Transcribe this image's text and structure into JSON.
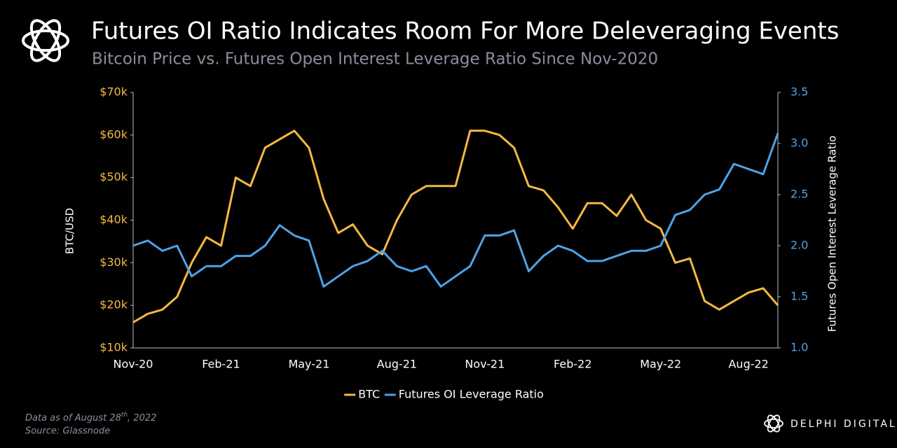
{
  "chart_data": {
    "type": "line",
    "title": "Futures OI Ratio Indicates Room For More Deleveraging Events",
    "subtitle": "Bitcoin Price vs. Futures Open Interest Leverage Ratio Since Nov-2020",
    "y_label": "BTC/USD",
    "y2_label": "Futures Open Interest Leverage Ratio",
    "categories": [
      "Nov-20",
      null,
      null,
      null,
      null,
      null,
      "Feb-21",
      null,
      null,
      null,
      null,
      null,
      "May-21",
      null,
      null,
      null,
      null,
      null,
      "Aug-21",
      null,
      null,
      null,
      null,
      null,
      "Nov-21",
      null,
      null,
      null,
      null,
      null,
      "Feb-22",
      null,
      null,
      null,
      null,
      null,
      "May-22",
      null,
      null,
      null,
      null,
      null,
      "Aug-22",
      null,
      null
    ],
    "series": [
      {
        "name": "BTC",
        "color": "#f4b942",
        "axis": "y",
        "values": [
          16000,
          18000,
          19000,
          22000,
          30000,
          36000,
          34000,
          50000,
          48000,
          57000,
          59000,
          61000,
          57000,
          45000,
          37000,
          39000,
          34000,
          32000,
          40000,
          46000,
          48000,
          48000,
          48000,
          61000,
          61000,
          60000,
          57000,
          48000,
          47000,
          43000,
          38000,
          44000,
          44000,
          41000,
          46000,
          40000,
          38000,
          30000,
          31000,
          21000,
          19000,
          21000,
          23000,
          24000,
          20000
        ]
      },
      {
        "name": "Futures OI Leverage Ratio",
        "color": "#4da3e8",
        "axis": "y2",
        "values": [
          2.0,
          2.05,
          1.95,
          2.0,
          1.7,
          1.8,
          1.8,
          1.9,
          1.9,
          2.0,
          2.2,
          2.1,
          2.05,
          1.6,
          1.7,
          1.8,
          1.85,
          1.95,
          1.8,
          1.75,
          1.8,
          1.6,
          1.7,
          1.8,
          2.1,
          2.1,
          2.15,
          1.75,
          1.9,
          2.0,
          1.95,
          1.85,
          1.85,
          1.9,
          1.95,
          1.95,
          2.0,
          2.3,
          2.35,
          2.5,
          2.55,
          2.8,
          2.75,
          2.7,
          3.1
        ]
      }
    ],
    "ylim": [
      10000,
      70000
    ],
    "yticks": [
      {
        "value": 10000,
        "label": "$10k"
      },
      {
        "value": 20000,
        "label": "$20k"
      },
      {
        "value": 30000,
        "label": "$30k"
      },
      {
        "value": 40000,
        "label": "$40k"
      },
      {
        "value": 50000,
        "label": "$50k"
      },
      {
        "value": 60000,
        "label": "$60k"
      },
      {
        "value": 70000,
        "label": "$70k"
      }
    ],
    "y2lim": [
      1.0,
      3.5
    ],
    "y2ticks": [
      {
        "value": 1,
        "label": "1.0"
      },
      1.5,
      {
        "value": 2,
        "label": "2.0"
      },
      2.5,
      {
        "value": 3,
        "label": "3.0"
      },
      3.5
    ],
    "y_tick_color": "#f4b942",
    "y2_tick_color": "#4da3e8",
    "grid": false,
    "legend": "bottom",
    "note": {
      "before": "Data as of August 28",
      "sup": "th",
      "after": ", 2022"
    },
    "source": "Source: Glassnode",
    "brand": "DELPHI DIGITAL"
  }
}
